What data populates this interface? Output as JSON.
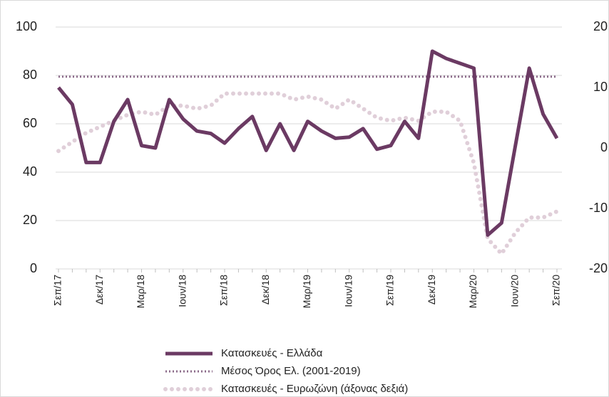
{
  "chart_data": {
    "type": "line",
    "categories": [
      "Σεπ/17",
      null,
      null,
      "Δεκ/17",
      null,
      null,
      "Μαρ/18",
      null,
      null,
      "Ιουν/18",
      null,
      null,
      "Σεπ/18",
      null,
      null,
      "Δεκ/18",
      null,
      null,
      "Μαρ/19",
      null,
      null,
      "Ιουν/19",
      null,
      null,
      "Σεπ/19",
      null,
      null,
      "Δεκ/19",
      null,
      null,
      "Μαρ/20",
      null,
      null,
      "Ιουν/20",
      null,
      null,
      "Σεπ/20"
    ],
    "series": [
      {
        "name": "Κατασκευές  - Ελλάδα",
        "color": "#6b3a63",
        "style": "solid",
        "values": [
          75,
          68,
          44,
          44,
          61,
          70,
          51,
          50,
          70,
          62,
          57,
          56,
          52,
          58,
          63,
          49,
          60,
          49,
          61,
          57,
          54,
          54.5,
          58,
          49.5,
          51,
          61,
          54,
          90,
          87,
          85,
          83,
          14,
          19,
          51,
          83,
          64,
          54
        ]
      },
      {
        "name": "Μέσος Όρος Ελ. (2001-2019)",
        "color": "#8c6b8a",
        "style": "dotted",
        "values": [
          79.5,
          79.5,
          79.5,
          79.5,
          79.5,
          79.5,
          79.5,
          79.5,
          79.5,
          79.5,
          79.5,
          79.5,
          79.5,
          79.5,
          79.5,
          79.5,
          79.5,
          79.5,
          79.5,
          79.5,
          79.5,
          79.5,
          79.5,
          79.5,
          79.5,
          79.5,
          79.5,
          79.5,
          79.5,
          79.5,
          79.5,
          79.5,
          79.5,
          79.5,
          79.5,
          79.5,
          79.5
        ]
      },
      {
        "name": "Κατασκευές - Ευρωζώνη (άξονας δεξιά)",
        "color": "#e0cfd9",
        "style": "dots",
        "axis": "y2",
        "values": [
          -0.5,
          1,
          2.5,
          3.5,
          4.5,
          5.5,
          6,
          5.5,
          7,
          7,
          6.5,
          7,
          9,
          9,
          9,
          9,
          9,
          8,
          8.5,
          8,
          6.5,
          8,
          6.5,
          5,
          4.5,
          5,
          4.5,
          6,
          6,
          4.5,
          -2.5,
          -15,
          -17.5,
          -14,
          -11.5,
          -11.5,
          -10.5
        ]
      }
    ],
    "ylim": [
      0,
      100
    ],
    "yticks": [
      0,
      20,
      40,
      60,
      80,
      100
    ],
    "y2lim": [
      -20,
      20
    ],
    "y2ticks": [
      -20,
      -10,
      0,
      10,
      20
    ],
    "grid": true,
    "legend": "bottom"
  }
}
